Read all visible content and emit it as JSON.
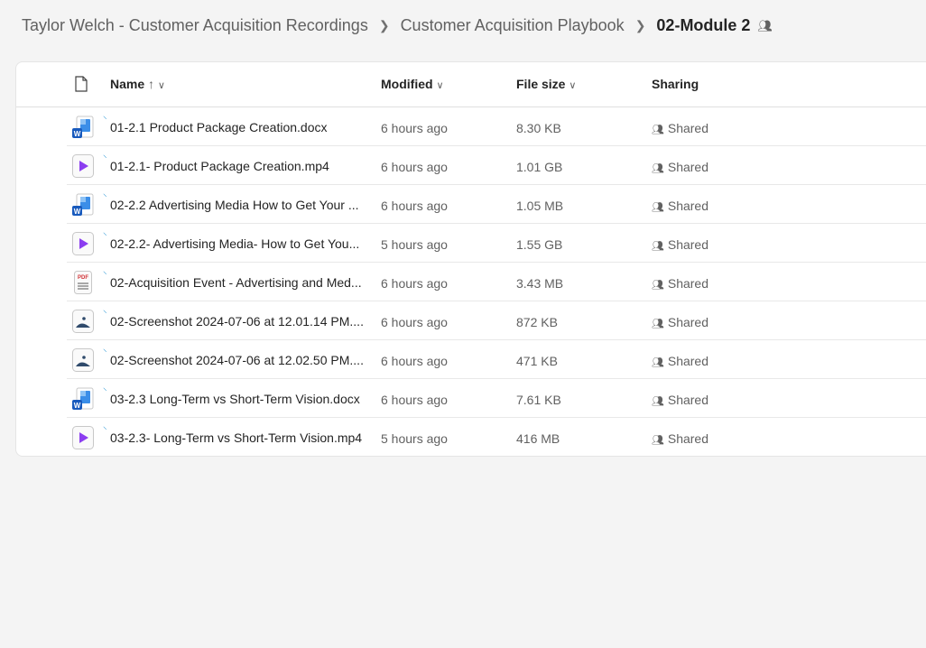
{
  "breadcrumb": [
    "Taylor Welch - Customer Acquisition Recordings",
    "Customer Acquisition Playbook",
    "02-Module 2"
  ],
  "columns": {
    "name": "Name",
    "name_sort": "↑",
    "modified": "Modified",
    "size": "File size",
    "sharing": "Sharing"
  },
  "files": [
    {
      "name": "01-2.1 Product Package Creation.docx",
      "type": "word",
      "modified": "6 hours ago",
      "size": "8.30 KB",
      "sharing": "Shared"
    },
    {
      "name": "01-2.1- Product Package Creation.mp4",
      "type": "video",
      "modified": "6 hours ago",
      "size": "1.01 GB",
      "sharing": "Shared"
    },
    {
      "name": "02-2.2 Advertising Media How to Get Your ...",
      "type": "word",
      "modified": "6 hours ago",
      "size": "1.05 MB",
      "sharing": "Shared"
    },
    {
      "name": "02-2.2- Advertising Media- How to Get You...",
      "type": "video",
      "modified": "5 hours ago",
      "size": "1.55 GB",
      "sharing": "Shared"
    },
    {
      "name": "02-Acquisition Event - Advertising and Med...",
      "type": "pdf",
      "modified": "6 hours ago",
      "size": "3.43 MB",
      "sharing": "Shared"
    },
    {
      "name": "02-Screenshot 2024-07-06 at 12.01.14 PM....",
      "type": "image",
      "modified": "6 hours ago",
      "size": "872 KB",
      "sharing": "Shared"
    },
    {
      "name": "02-Screenshot 2024-07-06 at 12.02.50 PM....",
      "type": "image",
      "modified": "6 hours ago",
      "size": "471 KB",
      "sharing": "Shared"
    },
    {
      "name": "03-2.3 Long-Term vs Short-Term Vision.docx",
      "type": "word",
      "modified": "6 hours ago",
      "size": "7.61 KB",
      "sharing": "Shared"
    },
    {
      "name": "03-2.3- Long-Term vs Short-Term Vision.mp4",
      "type": "video",
      "modified": "5 hours ago",
      "size": "416 MB",
      "sharing": "Shared"
    }
  ]
}
